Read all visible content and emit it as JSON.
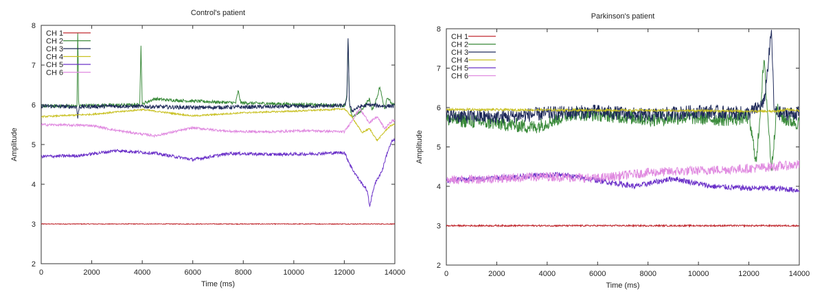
{
  "chart_data": [
    {
      "type": "line",
      "title": "Control's patient",
      "xlabel": "Time (ms)",
      "ylabel": "Amplitude",
      "xlim": [
        0,
        14000
      ],
      "ylim": [
        2,
        8
      ],
      "xticks": [
        0,
        2000,
        4000,
        6000,
        8000,
        10000,
        12000,
        14000
      ],
      "yticks": [
        2,
        3,
        4,
        5,
        6,
        7,
        8
      ],
      "grid": false,
      "legend_position": "top-left",
      "series": [
        {
          "name": "CH 1",
          "color": "#c0272d",
          "noise": 0.01,
          "x": [
            0,
            14000
          ],
          "y": [
            3.0,
            3.0
          ]
        },
        {
          "name": "CH 2",
          "color": "#3a8a3a",
          "noise": 0.04,
          "x": [
            0,
            1300,
            1420,
            1450,
            1480,
            1600,
            3900,
            3950,
            4000,
            4100,
            4500,
            5000,
            7700,
            7800,
            7900,
            12000,
            12100,
            12150,
            12200,
            12300,
            12600,
            13000,
            13100,
            13300,
            13400,
            13600,
            13700,
            13900
          ],
          "y": [
            5.97,
            5.97,
            5.97,
            8.0,
            5.98,
            5.98,
            6.0,
            7.5,
            6.0,
            6.05,
            6.15,
            6.12,
            6.05,
            6.35,
            6.05,
            5.98,
            6.2,
            7.7,
            6.0,
            5.7,
            5.8,
            6.15,
            5.85,
            6.2,
            6.45,
            5.9,
            6.2,
            6.0
          ]
        },
        {
          "name": "CH 3",
          "color": "#1f2a5a",
          "noise": 0.05,
          "x": [
            0,
            1400,
            1450,
            1500,
            3000,
            6000,
            9000,
            12000,
            12100,
            12150,
            12200,
            12300,
            12600,
            13000,
            13500,
            13900
          ],
          "y": [
            5.97,
            5.95,
            5.65,
            5.95,
            5.97,
            5.93,
            5.95,
            5.98,
            6.1,
            7.75,
            6.0,
            5.85,
            5.95,
            6.0,
            5.97,
            5.97
          ]
        },
        {
          "name": "CH 4",
          "color": "#c8c020",
          "noise": 0.02,
          "x": [
            0,
            2000,
            4000,
            6000,
            8000,
            10000,
            11500,
            12000,
            12300,
            12700,
            13000,
            13300,
            13700,
            13900
          ],
          "y": [
            5.7,
            5.76,
            5.88,
            5.72,
            5.8,
            5.84,
            5.88,
            5.9,
            5.7,
            5.3,
            5.4,
            5.1,
            5.4,
            5.5
          ]
        },
        {
          "name": "CH 5",
          "color": "#6a30c8",
          "noise": 0.04,
          "x": [
            0,
            1500,
            3000,
            4500,
            6000,
            7500,
            9000,
            10500,
            12000,
            12300,
            12600,
            12900,
            13000,
            13200,
            13500,
            13700,
            13900
          ],
          "y": [
            4.7,
            4.72,
            4.85,
            4.78,
            4.62,
            4.78,
            4.75,
            4.76,
            4.8,
            4.4,
            4.1,
            3.85,
            3.45,
            4.0,
            4.35,
            4.8,
            5.1
          ]
        },
        {
          "name": "CH 6",
          "color": "#e08ae0",
          "noise": 0.03,
          "x": [
            0,
            2000,
            3000,
            4500,
            6000,
            7500,
            9000,
            10500,
            12000,
            12300,
            12600,
            13000,
            13300,
            13600,
            13900
          ],
          "y": [
            5.5,
            5.48,
            5.35,
            5.22,
            5.42,
            5.33,
            5.32,
            5.35,
            5.32,
            5.6,
            5.9,
            5.55,
            5.7,
            5.4,
            5.6
          ]
        }
      ]
    },
    {
      "type": "line",
      "title": "Parkinson's patient",
      "xlabel": "Time (ms)",
      "ylabel": "Amplitude",
      "xlim": [
        0,
        14000
      ],
      "ylim": [
        2,
        8
      ],
      "xticks": [
        0,
        2000,
        4000,
        6000,
        8000,
        10000,
        12000,
        14000
      ],
      "yticks": [
        2,
        3,
        4,
        5,
        6,
        7,
        8
      ],
      "grid": false,
      "legend_position": "top-left",
      "series": [
        {
          "name": "CH 1",
          "color": "#c0272d",
          "noise": 0.02,
          "x": [
            0,
            14000
          ],
          "y": [
            3.0,
            3.0
          ]
        },
        {
          "name": "CH 2",
          "color": "#3a8a3a",
          "noise": 0.18,
          "x": [
            0,
            2000,
            3500,
            5000,
            6500,
            8000,
            9500,
            11000,
            12000,
            12300,
            12600,
            12900,
            13100,
            13400,
            14000
          ],
          "y": [
            5.7,
            5.6,
            5.5,
            5.85,
            5.8,
            5.7,
            5.75,
            5.7,
            5.75,
            4.6,
            7.2,
            4.4,
            6.0,
            5.7,
            5.6
          ]
        },
        {
          "name": "CH 3",
          "color": "#1f2a5a",
          "noise": 0.18,
          "x": [
            0,
            2000,
            4000,
            6000,
            8000,
            10000,
            12000,
            12600,
            12900,
            13000,
            13200,
            14000
          ],
          "y": [
            5.8,
            5.75,
            5.85,
            5.9,
            5.8,
            5.9,
            5.85,
            6.1,
            7.95,
            5.9,
            5.85,
            5.85
          ]
        },
        {
          "name": "CH 4",
          "color": "#c8c020",
          "noise": 0.03,
          "x": [
            0,
            3000,
            7000,
            10000,
            13000,
            13500,
            14000
          ],
          "y": [
            5.95,
            5.94,
            5.93,
            5.92,
            5.9,
            5.95,
            5.92
          ]
        },
        {
          "name": "CH 5",
          "color": "#6a30c8",
          "noise": 0.07,
          "x": [
            0,
            1500,
            3000,
            4500,
            6000,
            7500,
            9000,
            10500,
            12000,
            13000,
            14000
          ],
          "y": [
            4.15,
            4.2,
            4.25,
            4.3,
            4.15,
            4.0,
            4.2,
            4.0,
            3.95,
            3.95,
            3.9
          ]
        },
        {
          "name": "CH 6",
          "color": "#e08ae0",
          "noise": 0.12,
          "x": [
            0,
            2000,
            4000,
            6000,
            8000,
            10000,
            12000,
            13000,
            14000
          ],
          "y": [
            4.15,
            4.2,
            4.25,
            4.2,
            4.35,
            4.4,
            4.45,
            4.5,
            4.55
          ]
        }
      ]
    }
  ]
}
